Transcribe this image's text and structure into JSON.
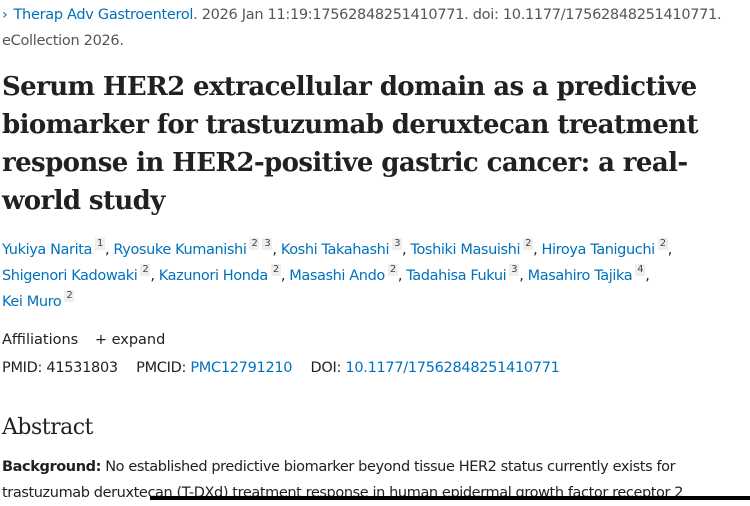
{
  "citation": {
    "journal": "Therap Adv Gastroenterol.",
    "details": "2026 Jan 11:19:17562848251410771. doi: 10.1177/17562848251410771.",
    "ecollection": "eCollection 2026."
  },
  "title": "Serum HER2 extracellular domain as a predictive biomarker for trastuzumab deruxtecan treatment response in HER2-positive gastric cancer: a real-world study",
  "authors": [
    {
      "name": "Yukiya Narita",
      "aff": [
        "1"
      ]
    },
    {
      "name": "Ryosuke Kumanishi",
      "aff": [
        "2",
        "3"
      ]
    },
    {
      "name": "Koshi Takahashi",
      "aff": [
        "3"
      ]
    },
    {
      "name": "Toshiki Masuishi",
      "aff": [
        "2"
      ]
    },
    {
      "name": "Hiroya Taniguchi",
      "aff": [
        "2"
      ]
    },
    {
      "name": "Shigenori Kadowaki",
      "aff": [
        "2"
      ]
    },
    {
      "name": "Kazunori Honda",
      "aff": [
        "2"
      ]
    },
    {
      "name": "Masashi Ando",
      "aff": [
        "2"
      ]
    },
    {
      "name": "Tadahisa Fukui",
      "aff": [
        "3"
      ]
    },
    {
      "name": "Masahiro Tajika",
      "aff": [
        "4"
      ]
    },
    {
      "name": "Kei Muro",
      "aff": [
        "2"
      ]
    }
  ],
  "affiliations": {
    "label": "Affiliations",
    "expand": "+ expand"
  },
  "ids": {
    "pmid_label": "PMID:",
    "pmid": "41531803",
    "pmcid_label": "PMCID:",
    "pmcid": "PMC12791210",
    "doi_label": "DOI:",
    "doi": "10.1177/17562848251410771"
  },
  "abstract": {
    "heading": "Abstract",
    "background_label": "Background:",
    "background_text": "No established predictive biomarker beyond tissue HER2 status currently exists for trastuzumab deruxtecan (T-DXd) treatment response in human epidermal growth factor receptor 2"
  }
}
